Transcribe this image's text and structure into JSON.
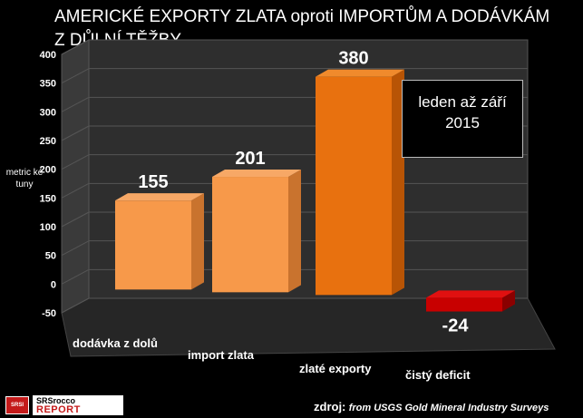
{
  "logo": {
    "emblem_text": "SRSI",
    "line1": "SRSrocco",
    "line2": "REPORT"
  },
  "source": {
    "label": "zdroj:",
    "text": "from USGS Gold Mineral Industry Surveys"
  },
  "annotation": {
    "line1": "leden až září",
    "line2": "2015"
  },
  "colors": {
    "bar_light": "#f7994a",
    "bar_dark": "#e8710f",
    "bar_negative": "#c80000",
    "background": "#000000",
    "wall": "#3c3c3c"
  },
  "chart_data": {
    "type": "bar",
    "title": "AMERICKÉ EXPORTY ZLATA oproti IMPORTŮM A DODÁVKÁM Z DŮLNÍ TĚŽBY",
    "ylabel": "metric ké tuny",
    "xlabel": "",
    "ylim": [
      -50,
      400
    ],
    "yticks": [
      -50,
      0,
      50,
      100,
      150,
      200,
      250,
      300,
      350,
      400
    ],
    "grid": true,
    "categories": [
      "dodávka z dolů",
      "import zlata",
      "zlaté exporty",
      "čistý deficit"
    ],
    "values": [
      155,
      201,
      380,
      -24
    ],
    "data_labels": [
      "155",
      "201",
      "380",
      "-24"
    ]
  }
}
